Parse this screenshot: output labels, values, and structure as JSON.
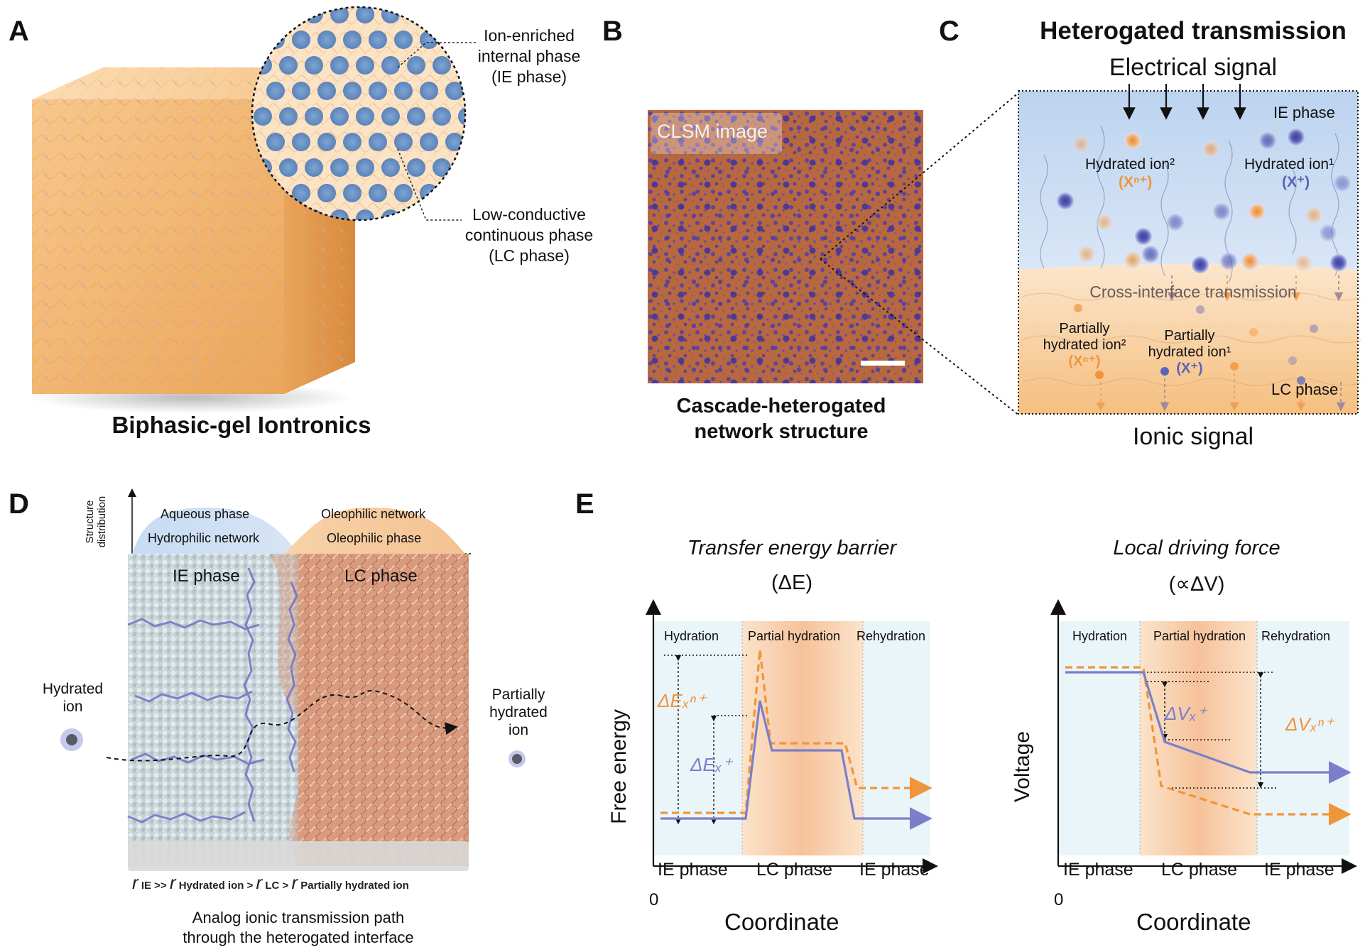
{
  "panel_labels": {
    "a": "A",
    "b": "B",
    "c": "C",
    "d": "D",
    "e": "E"
  },
  "panel_a": {
    "ie_callout": [
      "Ion-enriched",
      "internal phase",
      "(IE phase)"
    ],
    "lc_callout": [
      "Low-conductive",
      "continuous phase",
      "(LC phase)"
    ],
    "caption": "Biphasic-gel Iontronics"
  },
  "panel_b": {
    "image_tag": "CLSM image",
    "caption_line1": "Cascade-heterogated",
    "caption_line2": "network structure"
  },
  "panel_c": {
    "title": "Heterogated transmission",
    "electrical_signal": "Electrical signal",
    "ie_phase": "IE phase",
    "hydrated_ion2": "Hydrated ion²",
    "hydrated_ion2_sym": "(Xⁿ⁺)",
    "hydrated_ion1": "Hydrated ion¹",
    "hydrated_ion1_sym": "(X⁺)",
    "cross_interface": "Cross-interface transmission",
    "partial2_line1": "Partially",
    "partial2_line2": "hydrated ion²",
    "partial2_sym": "(Xⁿ⁺)",
    "partial1_line1": "Partially",
    "partial1_line2": "hydrated ion¹",
    "partial1_sym": "(X⁺)",
    "lc_phase": "LC phase",
    "ionic_signal": "Ionic signal",
    "colors": {
      "ie_blue": "#c9dcf3",
      "lc_orange": "#f6c98e",
      "ion_blue": "#5a63b8",
      "ion_orange": "#f0953a"
    }
  },
  "panel_d": {
    "axis_label_line1": "Structure",
    "axis_label_line2": "distribution",
    "aqueous_phase": "Aqueous phase",
    "hydrophilic_network": "Hydrophilic network",
    "oleophilic_network": "Oleophilic network",
    "oleophilic_phase": "Oleophilic phase",
    "ie_phase": "IE phase",
    "lc_phase": "LC phase",
    "hydrated_ion_line1": "Hydrated",
    "hydrated_ion_line2": "ion",
    "partial_line1": "Partially",
    "partial_line2": "hydrated",
    "partial_line3": "ion",
    "relation": {
      "r": "r",
      "t1": "IE >> ",
      "t2": "Hydrated ion > ",
      "t3": "LC > ",
      "t4": "Partially hydrated ion"
    },
    "caption_line1": "Analog ionic transmission path",
    "caption_line2": "through the heterogated interface"
  },
  "panel_e": {
    "left": {
      "title": "Transfer energy barrier",
      "subtitle": "(ΔE)",
      "ylabel": "Free energy",
      "xlabel": "Coordinate",
      "origin": "0",
      "regions": [
        "Hydration",
        "Partial hydration",
        "Rehydration"
      ],
      "phases": [
        "IE phase",
        "LC phase",
        "IE phase"
      ],
      "delta_big": "ΔEₓⁿ⁺",
      "delta_small": "ΔEₓ⁺"
    },
    "right": {
      "title": "Local driving force",
      "subtitle": "(∝ΔV)",
      "ylabel": "Voltage",
      "xlabel": "Coordinate",
      "origin": "0",
      "regions": [
        "Hydration",
        "Partial hydration",
        "Rehydration"
      ],
      "phases": [
        "IE phase",
        "LC phase",
        "IE phase"
      ],
      "delta_small": "ΔVₓ⁺",
      "delta_big": "ΔVₓⁿ⁺"
    },
    "colors": {
      "orange": "#f0953a",
      "blue": "#7b7fc9"
    }
  }
}
